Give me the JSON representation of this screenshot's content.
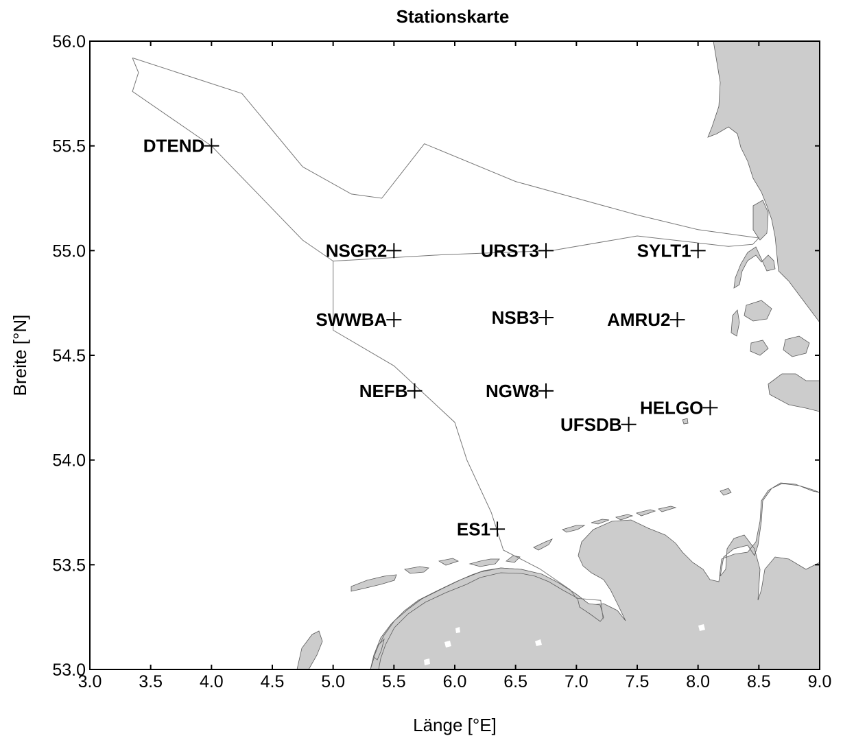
{
  "title": "Stationskarte",
  "xlabel": "Länge [°E]",
  "ylabel": "Breite [°N]",
  "colors": {
    "land": "#cccccc",
    "coastline": "#5a5a5a",
    "boundary": "#777777"
  },
  "chart_data": {
    "type": "scatter",
    "title": "Stationskarte",
    "xlabel": "Länge [°E]",
    "ylabel": "Breite [°N]",
    "xlim": [
      3.0,
      9.0
    ],
    "ylim": [
      53.0,
      56.0
    ],
    "x_tick_labels": [
      "3.0",
      "3.5",
      "4.0",
      "4.5",
      "5.0",
      "5.5",
      "6.0",
      "6.5",
      "7.0",
      "7.5",
      "8.0",
      "8.5",
      "9.0"
    ],
    "y_tick_labels": [
      "53.0",
      "53.5",
      "54.0",
      "54.5",
      "55.0",
      "55.5",
      "56.0"
    ],
    "x_ticks": [
      3.0,
      3.5,
      4.0,
      4.5,
      5.0,
      5.5,
      6.0,
      6.5,
      7.0,
      7.5,
      8.0,
      8.5,
      9.0
    ],
    "y_ticks": [
      53.0,
      53.5,
      54.0,
      54.5,
      55.0,
      55.5,
      56.0
    ],
    "grid": false,
    "stations": [
      {
        "name": "DTEND",
        "lon": 4.0,
        "lat": 55.5
      },
      {
        "name": "NSGR2",
        "lon": 5.5,
        "lat": 55.0
      },
      {
        "name": "URST3",
        "lon": 6.75,
        "lat": 55.0
      },
      {
        "name": "SYLT1",
        "lon": 8.0,
        "lat": 55.0
      },
      {
        "name": "SWWBA",
        "lon": 5.5,
        "lat": 54.67
      },
      {
        "name": "NSB3",
        "lon": 6.75,
        "lat": 54.68
      },
      {
        "name": "AMRU2",
        "lon": 7.83,
        "lat": 54.67
      },
      {
        "name": "NEFB",
        "lon": 5.67,
        "lat": 54.33
      },
      {
        "name": "NGW8",
        "lon": 6.75,
        "lat": 54.33
      },
      {
        "name": "HELGO",
        "lon": 8.1,
        "lat": 54.25
      },
      {
        "name": "UFSDB",
        "lon": 7.43,
        "lat": 54.17
      },
      {
        "name": "ES1",
        "lon": 6.35,
        "lat": 53.67
      }
    ],
    "boundary": [
      [
        3.35,
        55.92
      ],
      [
        4.25,
        55.75
      ],
      [
        4.75,
        55.4
      ],
      [
        5.15,
        55.27
      ],
      [
        5.4,
        55.25
      ],
      [
        5.75,
        55.51
      ],
      [
        6.5,
        55.33
      ],
      [
        7.0,
        55.25
      ],
      [
        7.5,
        55.17
      ],
      [
        8.0,
        55.1
      ],
      [
        8.5,
        55.06
      ],
      [
        8.45,
        55.03
      ],
      [
        8.25,
        55.02
      ],
      [
        7.5,
        55.07
      ],
      [
        6.8,
        55.0
      ],
      [
        5.9,
        54.98
      ],
      [
        5.0,
        54.95
      ],
      [
        5.0,
        54.62
      ],
      [
        5.5,
        54.45
      ],
      [
        6.0,
        54.18
      ],
      [
        6.1,
        54.0
      ],
      [
        6.3,
        53.75
      ],
      [
        6.4,
        53.57
      ],
      [
        6.7,
        53.48
      ],
      [
        6.95,
        53.38
      ],
      [
        7.0,
        53.34
      ],
      [
        7.2,
        53.33
      ],
      [
        7.22,
        53.24
      ]
    ],
    "boundary_west": [
      [
        3.35,
        55.92
      ],
      [
        3.4,
        55.85
      ],
      [
        3.35,
        55.76
      ],
      [
        4.0,
        55.5
      ],
      [
        4.75,
        55.05
      ],
      [
        5.0,
        54.95
      ]
    ]
  }
}
